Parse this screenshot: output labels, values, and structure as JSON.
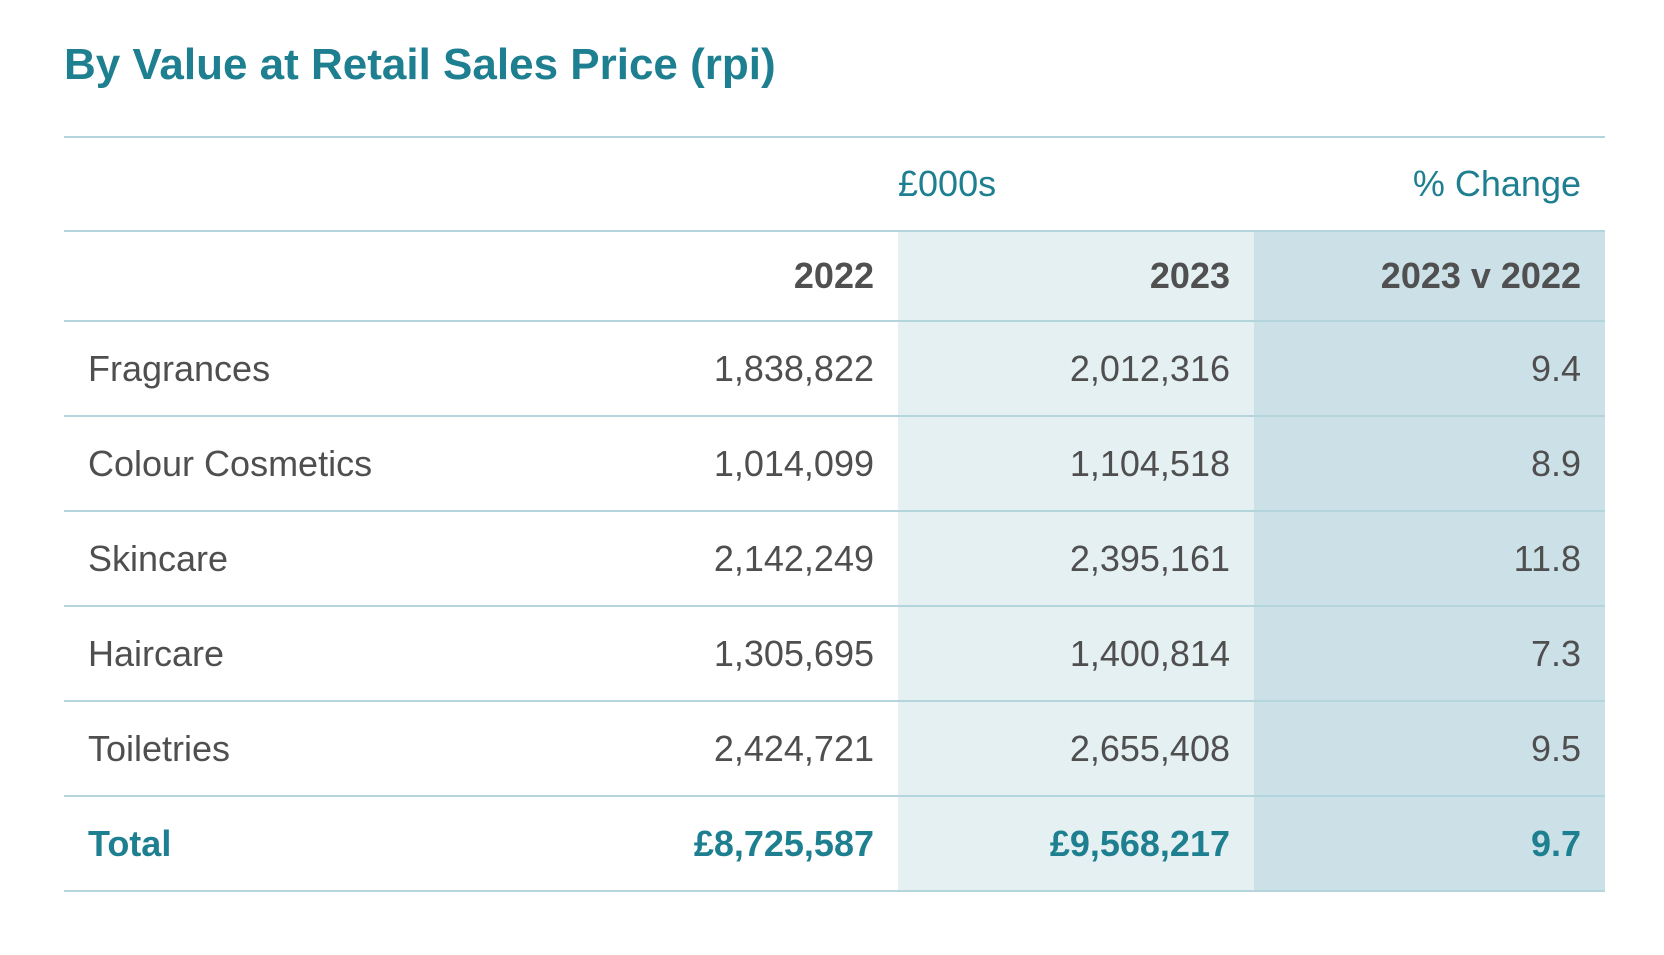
{
  "title": "By Value at Retail Sales Price (rpi)",
  "colors": {
    "accent": "#1d7f8f",
    "text": "#4f4f4f",
    "rule": "#b5d5dd",
    "shade_2023": "#e5f0f2",
    "shade_change": "#cce1e7"
  },
  "chart_data": {
    "type": "table",
    "title": "By Value at Retail Sales Price (rpi)",
    "header_groups": [
      "£000s",
      "% Change"
    ],
    "columns": [
      "",
      "2022",
      "2023",
      "2023 v 2022"
    ],
    "rows": [
      {
        "category": "Fragrances",
        "v2022": "1,838,822",
        "v2023": "2,012,316",
        "change": "9.4"
      },
      {
        "category": "Colour Cosmetics",
        "v2022": "1,014,099",
        "v2023": "1,104,518",
        "change": "8.9"
      },
      {
        "category": "Skincare",
        "v2022": "2,142,249",
        "v2023": "2,395,161",
        "change": "11.8"
      },
      {
        "category": "Haircare",
        "v2022": "1,305,695",
        "v2023": "1,400,814",
        "change": "7.3"
      },
      {
        "category": "Toiletries",
        "v2022": "2,424,721",
        "v2023": "2,655,408",
        "change": "9.5"
      }
    ],
    "total": {
      "category": "Total",
      "v2022": "£8,725,587",
      "v2023": "£9,568,217",
      "change": "9.7"
    }
  }
}
